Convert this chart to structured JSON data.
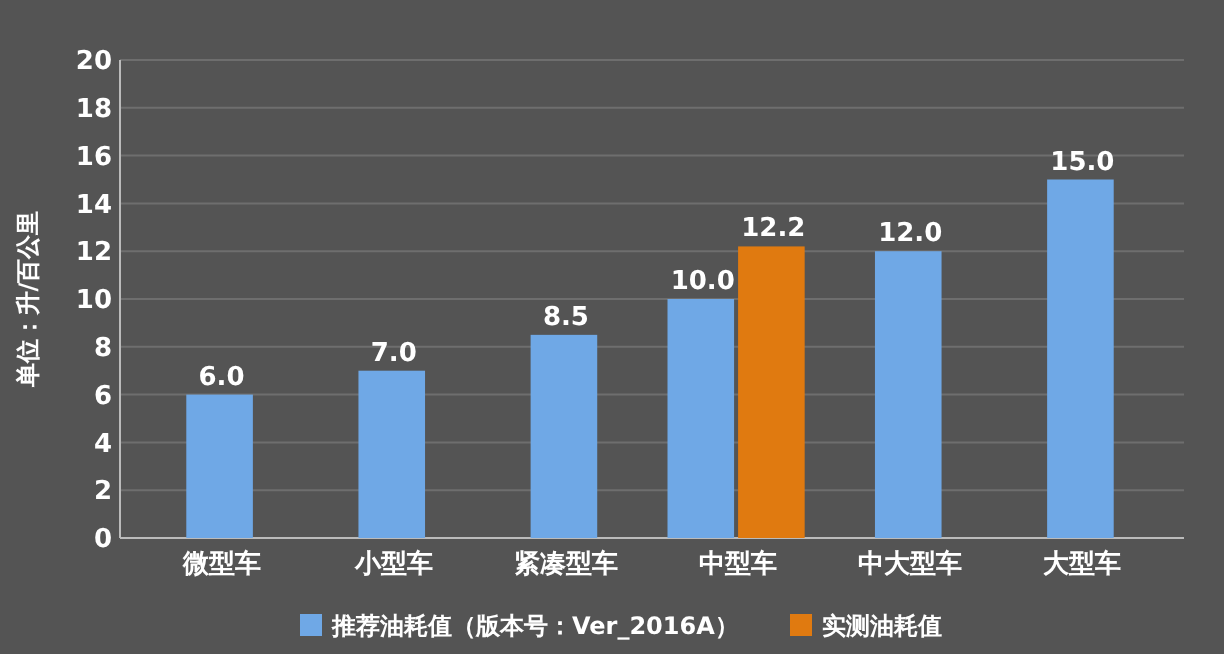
{
  "chart_data": {
    "type": "bar",
    "ylabel": "单位：升/百公里",
    "categories": [
      "微型车",
      "小型车",
      "紧凑型车",
      "中型车",
      "中大型车",
      "大型车"
    ],
    "series": [
      {
        "name": "推荐油耗值（版本号：Ver_2016A）",
        "color": "#6fa8e6",
        "values": [
          6.0,
          7.0,
          8.5,
          10.0,
          12.0,
          15.0
        ],
        "value_labels": [
          "6.0",
          "7.0",
          "8.5",
          "10.0",
          "12.0",
          "15.0"
        ]
      },
      {
        "name": "实测油耗值",
        "color": "#e07a10",
        "values": [
          null,
          null,
          null,
          12.2,
          null,
          null
        ],
        "value_labels": [
          null,
          null,
          null,
          "12.2",
          null,
          null
        ]
      }
    ],
    "ylim": [
      0,
      20
    ],
    "yticks": [
      0,
      2,
      4,
      6,
      8,
      10,
      12,
      14,
      16,
      18,
      20
    ],
    "grid": "y",
    "legend": "bottom"
  }
}
